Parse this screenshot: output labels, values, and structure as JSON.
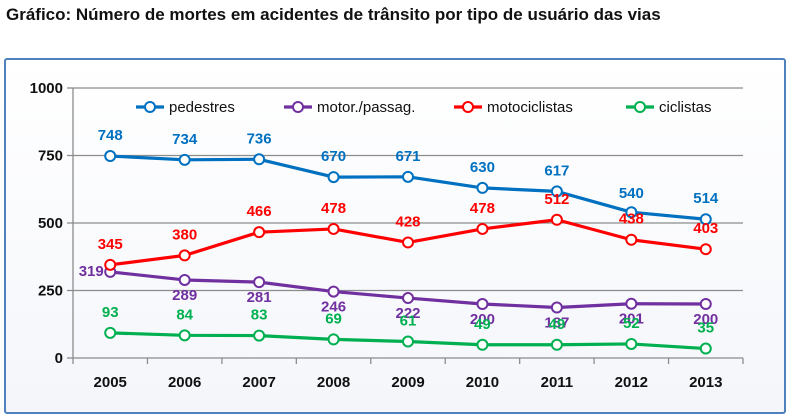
{
  "title": "Gráfico: Número de mortes em acidentes de trânsito por tipo de usuário das vias",
  "chart_data": {
    "type": "line",
    "title": "",
    "xlabel": "",
    "ylabel": "",
    "categories": [
      "2005",
      "2006",
      "2007",
      "2008",
      "2009",
      "2010",
      "2011",
      "2012",
      "2013"
    ],
    "ylim": [
      0,
      1000
    ],
    "yticks": [
      0,
      250,
      500,
      750,
      1000
    ],
    "grid": true,
    "legend_position": "top",
    "series": [
      {
        "name": "pedestres",
        "color": "#0070c0",
        "values": [
          748,
          734,
          736,
          670,
          671,
          630,
          617,
          540,
          514
        ]
      },
      {
        "name": "motor./passag.",
        "color": "#7030a0",
        "values": [
          319,
          289,
          281,
          246,
          222,
          200,
          187,
          201,
          200
        ]
      },
      {
        "name": "motociclistas",
        "color": "#ff0000",
        "values": [
          345,
          380,
          466,
          478,
          428,
          478,
          512,
          438,
          403
        ]
      },
      {
        "name": "ciclistas",
        "color": "#00b050",
        "values": [
          93,
          84,
          83,
          69,
          61,
          49,
          49,
          52,
          35
        ]
      }
    ]
  }
}
